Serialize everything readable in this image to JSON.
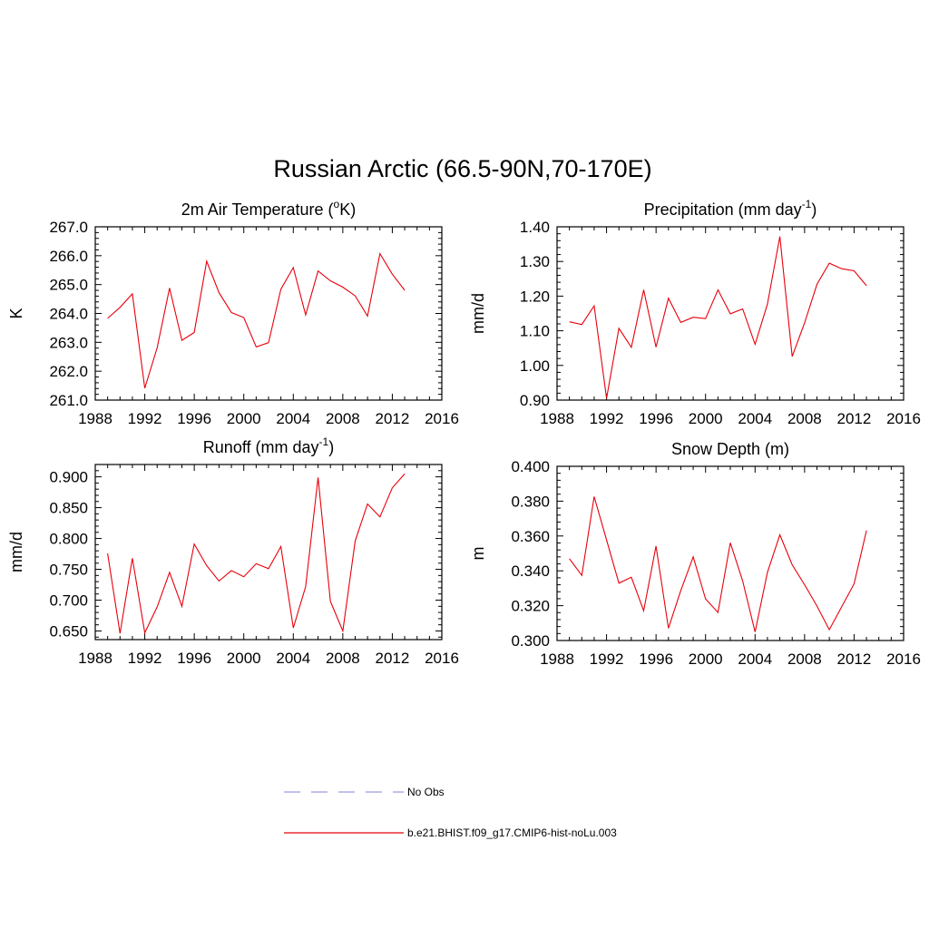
{
  "figure": {
    "title": "Russian Arctic (66.5-90N,70-170E)"
  },
  "legend": [
    {
      "label": "No Obs",
      "color": "#9a9ae8",
      "dash": "dashed"
    },
    {
      "label": "b.e21.BHIST.f09_g17.CMIP6-hist-noLu.003",
      "color": "#e8000b",
      "dash": "solid"
    }
  ],
  "chart_data": [
    {
      "type": "line",
      "title": "2m Air Temperature (",
      "title_sup": "o",
      "title_tail": "K)",
      "ylabel": "K",
      "xlim": [
        1988,
        2016
      ],
      "ylim": [
        261.0,
        267.0
      ],
      "xticks": [
        1988,
        1992,
        1996,
        2000,
        2004,
        2008,
        2012,
        2016
      ],
      "yticks": [
        "261.0",
        "262.0",
        "263.0",
        "264.0",
        "265.0",
        "266.0",
        "267.0"
      ],
      "series": [
        {
          "color": "#e8000b",
          "x": [
            1989,
            1990,
            1991,
            1992,
            1993,
            1994,
            1995,
            1996,
            1997,
            1998,
            1999,
            2000,
            2001,
            2002,
            2003,
            2004,
            2005,
            2006,
            2007,
            2008,
            2009,
            2010,
            2011,
            2012,
            2013
          ],
          "y": [
            263.83,
            264.21,
            264.68,
            261.41,
            262.81,
            264.88,
            263.07,
            263.34,
            265.81,
            264.72,
            264.03,
            263.86,
            262.84,
            262.99,
            264.84,
            265.59,
            263.95,
            265.47,
            265.13,
            264.91,
            264.61,
            263.91,
            266.07,
            265.36,
            264.8
          ]
        }
      ]
    },
    {
      "type": "line",
      "title": "Precipitation (mm day",
      "title_sup": "-1",
      "title_tail": ")",
      "ylabel": "mm/d",
      "xlim": [
        1988,
        2016
      ],
      "ylim": [
        0.9,
        1.4
      ],
      "xticks": [
        1988,
        1992,
        1996,
        2000,
        2004,
        2008,
        2012,
        2016
      ],
      "yticks": [
        "0.90",
        "1.00",
        "1.10",
        "1.20",
        "1.30",
        "1.40"
      ],
      "series": [
        {
          "color": "#e8000b",
          "x": [
            1989,
            1990,
            1991,
            1992,
            1993,
            1994,
            1995,
            1996,
            1997,
            1998,
            1999,
            2000,
            2001,
            2002,
            2003,
            2004,
            2005,
            2006,
            2007,
            2008,
            2009,
            2010,
            2011,
            2012,
            2013
          ],
          "y": [
            1.126,
            1.118,
            1.172,
            0.905,
            1.107,
            1.052,
            1.218,
            1.053,
            1.194,
            1.124,
            1.139,
            1.135,
            1.218,
            1.149,
            1.163,
            1.061,
            1.177,
            1.372,
            1.026,
            1.123,
            1.234,
            1.295,
            1.279,
            1.273,
            1.23
          ]
        }
      ]
    },
    {
      "type": "line",
      "title": "Runoff (mm day",
      "title_sup": "-1",
      "title_tail": ")",
      "ylabel": "mm/d",
      "xlim": [
        1988,
        2016
      ],
      "ylim": [
        0.636,
        0.92
      ],
      "xticks": [
        1988,
        1992,
        1996,
        2000,
        2004,
        2008,
        2012,
        2016
      ],
      "yticks": [
        "0.650",
        "0.700",
        "0.750",
        "0.800",
        "0.850",
        "0.900"
      ],
      "series": [
        {
          "color": "#e8000b",
          "x": [
            1989,
            1990,
            1991,
            1992,
            1993,
            1994,
            1995,
            1996,
            1997,
            1998,
            1999,
            2000,
            2001,
            2002,
            2003,
            2004,
            2005,
            2006,
            2007,
            2008,
            2009,
            2010,
            2011,
            2012,
            2013
          ],
          "y": [
            0.776,
            0.646,
            0.768,
            0.647,
            0.689,
            0.745,
            0.69,
            0.791,
            0.756,
            0.731,
            0.748,
            0.738,
            0.759,
            0.751,
            0.787,
            0.655,
            0.722,
            0.899,
            0.698,
            0.65,
            0.796,
            0.856,
            0.835,
            0.882,
            0.905
          ]
        }
      ]
    },
    {
      "type": "line",
      "title": "Snow Depth (m)",
      "title_sup": "",
      "title_tail": "",
      "ylabel": "m",
      "xlim": [
        1988,
        2016
      ],
      "ylim": [
        0.3,
        0.4
      ],
      "xticks": [
        1988,
        1992,
        1996,
        2000,
        2004,
        2008,
        2012,
        2016
      ],
      "yticks": [
        "0.300",
        "0.320",
        "0.340",
        "0.360",
        "0.380",
        "0.400"
      ],
      "series": [
        {
          "color": "#e8000b",
          "x": [
            1989,
            1990,
            1991,
            1992,
            1993,
            1994,
            1995,
            1996,
            1997,
            1998,
            1999,
            2000,
            2001,
            2002,
            2003,
            2004,
            2005,
            2006,
            2007,
            2008,
            2009,
            2010,
            2011,
            2012,
            2013
          ],
          "y": [
            0.347,
            0.3374,
            0.3826,
            0.3577,
            0.3329,
            0.3363,
            0.3171,
            0.3542,
            0.3071,
            0.3287,
            0.348,
            0.3239,
            0.3161,
            0.3561,
            0.3342,
            0.3049,
            0.3391,
            0.3607,
            0.3435,
            0.332,
            0.3198,
            0.3062,
            0.3194,
            0.3325,
            0.3632
          ]
        }
      ]
    }
  ]
}
